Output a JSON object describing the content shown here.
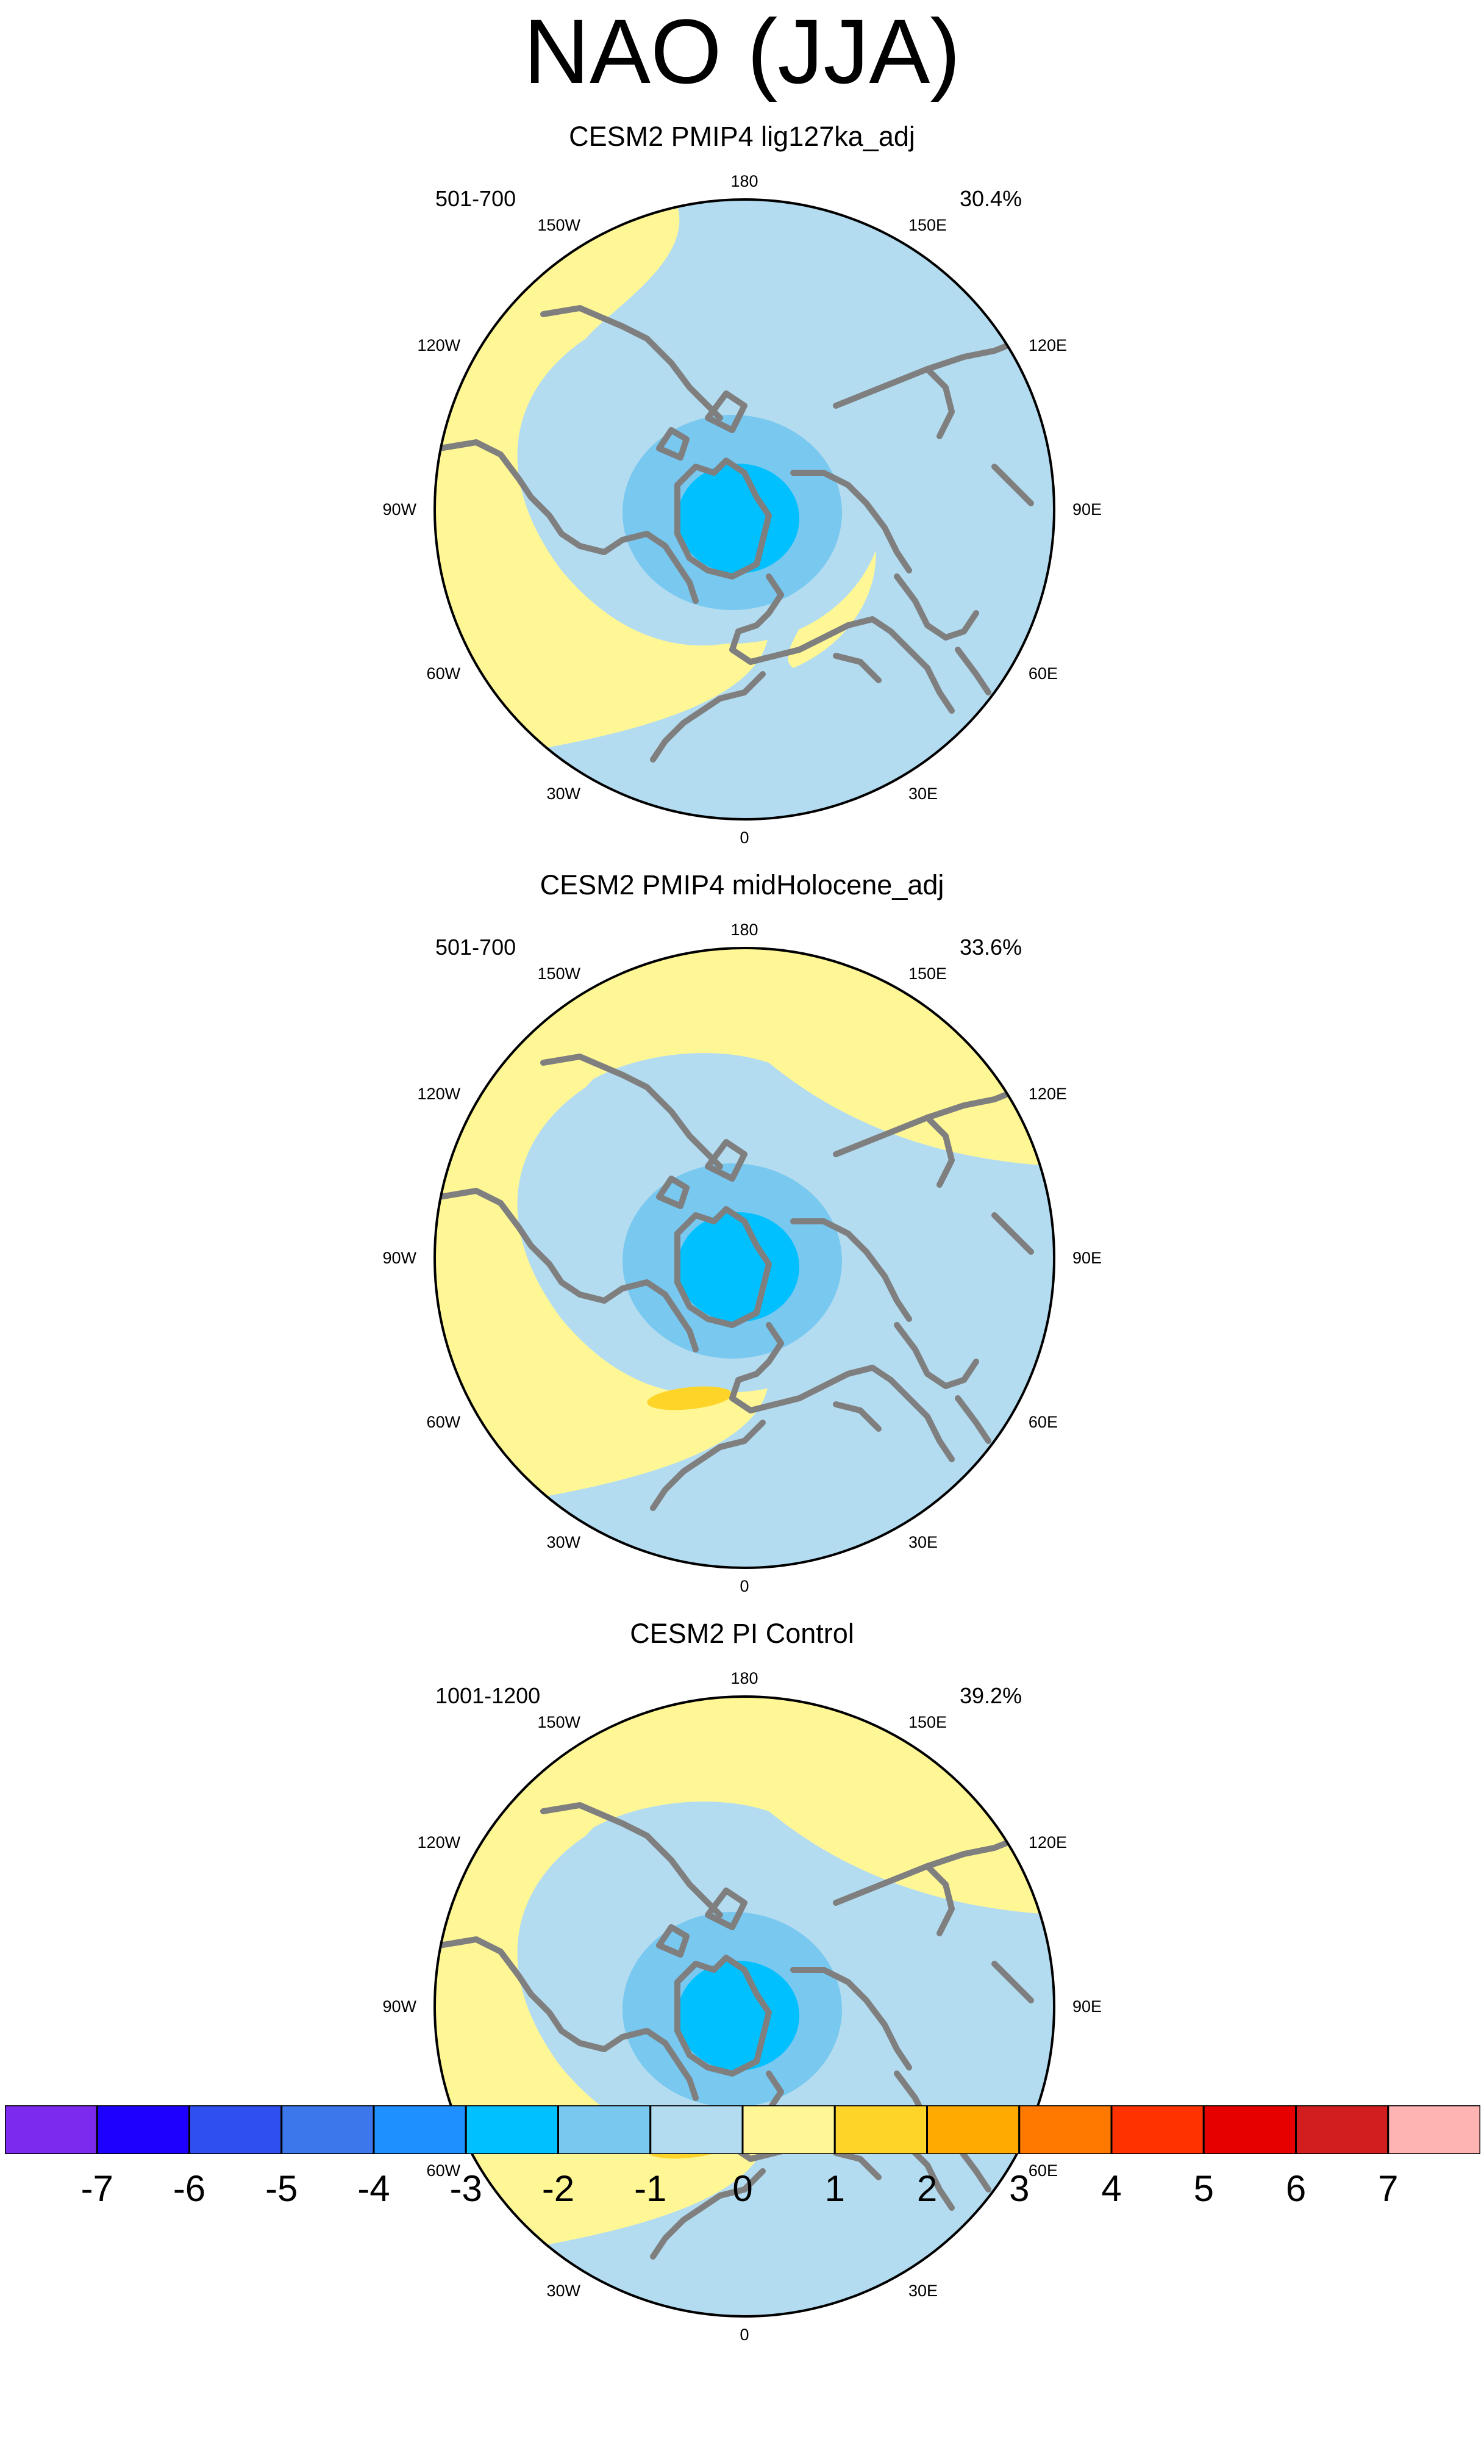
{
  "title": "NAO (JJA)",
  "colors": {
    "ocean_light_blue": "#b4dcf0",
    "mid_blue": "#78c8f0",
    "cyan": "#00c0ff",
    "pale_yellow": "#fff796",
    "orange_yellow": "#ffd428",
    "coast": "#7f7f7f"
  },
  "panels": [
    {
      "title": "CESM2 PMIP4 lig127ka_adj",
      "years": "501-700",
      "percent": "30.4%",
      "yellow_gyre": true,
      "orange_blob": false
    },
    {
      "title": "CESM2 PMIP4 midHolocene_adj",
      "years": "501-700",
      "percent": "33.6%",
      "yellow_gyre": false,
      "orange_blob": true
    },
    {
      "title": "CESM2 PI Control",
      "years": "1001-1200",
      "percent": "39.2%",
      "yellow_gyre": false,
      "orange_blob": true
    }
  ],
  "longitude_labels": [
    {
      "text": "180",
      "deg": 180
    },
    {
      "text": "150W",
      "deg": -150
    },
    {
      "text": "150E",
      "deg": 150
    },
    {
      "text": "120W",
      "deg": -120
    },
    {
      "text": "120E",
      "deg": 120
    },
    {
      "text": "90W",
      "deg": -90
    },
    {
      "text": "90E",
      "deg": 90
    },
    {
      "text": "60W",
      "deg": -60
    },
    {
      "text": "60E",
      "deg": 60
    },
    {
      "text": "30W",
      "deg": -30
    },
    {
      "text": "30E",
      "deg": 30
    },
    {
      "text": "0",
      "deg": 0
    }
  ],
  "colorbar": {
    "colors": [
      "#7d2aef",
      "#1e00ff",
      "#2f4ff0",
      "#3c78ec",
      "#1e90ff",
      "#00c0ff",
      "#78c8f0",
      "#b4dcf0",
      "#fff796",
      "#ffd428",
      "#ffaa00",
      "#ff7800",
      "#ff3200",
      "#e60000",
      "#d21e1e",
      "#ffb4b4"
    ],
    "labels": [
      "-7",
      "-6",
      "-5",
      "-4",
      "-3",
      "-2",
      "-1",
      "0",
      "1",
      "2",
      "3",
      "4",
      "5",
      "6",
      "7"
    ]
  }
}
